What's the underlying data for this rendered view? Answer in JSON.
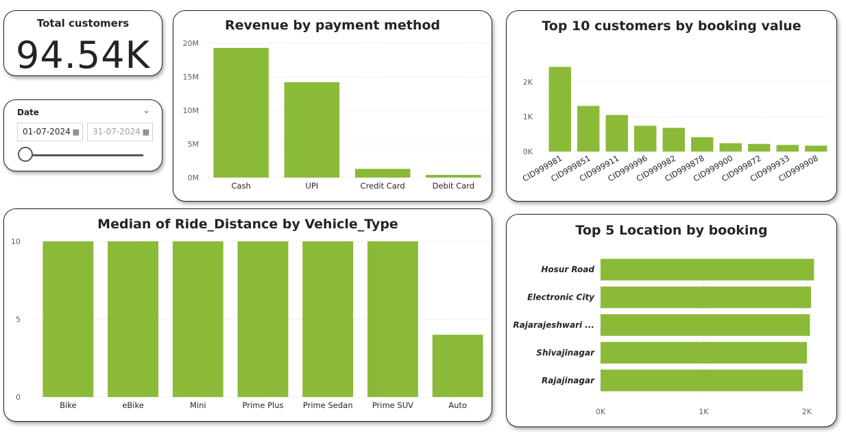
{
  "kpi": {
    "title": "Total customers",
    "value": "94.54K"
  },
  "date_slicer": {
    "title": "Date",
    "from": "01-07-2024",
    "to": "31-07-2024",
    "position": 0
  },
  "colors": {
    "bar": "#8aba38"
  },
  "chart_data": [
    {
      "id": "payment",
      "type": "bar",
      "title": "Revenue by payment method",
      "categories": [
        "Cash",
        "UPI",
        "Credit Card",
        "Debit Card"
      ],
      "values": [
        19300000,
        14200000,
        1300000,
        400000
      ],
      "yticks": [
        0,
        5000000,
        10000000,
        15000000,
        20000000
      ],
      "ytick_labels": [
        "0M",
        "5M",
        "10M",
        "15M",
        "20M"
      ],
      "ylim": [
        0,
        20000000
      ],
      "grid": true
    },
    {
      "id": "customers",
      "type": "bar",
      "title": "Top 10 customers by booking value",
      "categories": [
        "CID999981",
        "CID999851",
        "CID999911",
        "CID999996",
        "CID999982",
        "CID999878",
        "CID999900",
        "CID999872",
        "CID999933",
        "CID999908"
      ],
      "values": [
        2430,
        1310,
        1050,
        740,
        680,
        410,
        240,
        220,
        190,
        170
      ],
      "yticks": [
        0,
        1000,
        2000
      ],
      "ytick_labels": [
        "0K",
        "1K",
        "2K"
      ],
      "ylim": [
        0,
        2500
      ],
      "grid": true
    },
    {
      "id": "distance",
      "type": "bar",
      "title": "Median of Ride_Distance by Vehicle_Type",
      "categories": [
        "Bike",
        "eBike",
        "Mini",
        "Prime Plus",
        "Prime Sedan",
        "Prime SUV",
        "Auto"
      ],
      "values": [
        10,
        10,
        10,
        10,
        10,
        10,
        4
      ],
      "yticks": [
        0,
        5,
        10
      ],
      "ytick_labels": [
        "0",
        "5",
        "10"
      ],
      "ylim": [
        0,
        10
      ],
      "grid": true
    },
    {
      "id": "location",
      "type": "bar",
      "orientation": "horizontal",
      "title": "Top 5 Location by booking",
      "categories": [
        "Hosur Road",
        "Electronic City",
        "Rajarajeshwari ...",
        "Shivajinagar",
        "Rajajinagar"
      ],
      "values": [
        2070,
        2040,
        2030,
        2000,
        1960
      ],
      "xticks": [
        0,
        1000,
        2000
      ],
      "xtick_labels": [
        "0K",
        "1K",
        "2K"
      ],
      "xlim": [
        0,
        2200
      ],
      "grid": true
    }
  ]
}
